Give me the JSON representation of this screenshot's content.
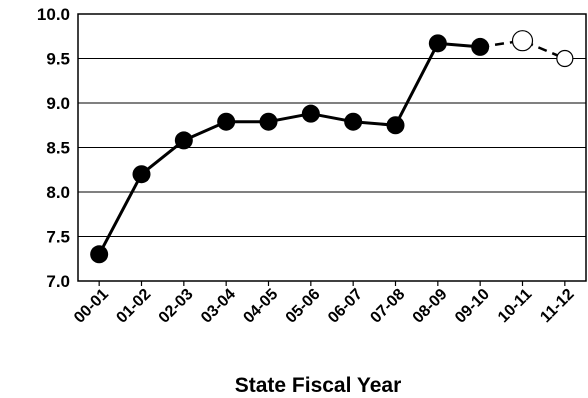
{
  "chart_data": {
    "type": "line",
    "title": "",
    "xlabel": "State Fiscal Year",
    "ylabel": "",
    "ylim": [
      7.0,
      10.0
    ],
    "yticks": [
      "7.0",
      "7.5",
      "8.0",
      "8.5",
      "9.0",
      "9.5",
      "10.0"
    ],
    "grid": true,
    "categories": [
      "00-01",
      "01-02",
      "02-03",
      "03-04",
      "04-05",
      "05-06",
      "06-07",
      "07-08",
      "08-09",
      "09-10",
      "10-11",
      "11-12"
    ],
    "series": [
      {
        "style": "solid-filled-markers",
        "values": [
          7.3,
          8.2,
          8.58,
          8.79,
          8.79,
          8.88,
          8.79,
          8.75,
          9.67,
          9.63,
          null,
          null
        ]
      },
      {
        "style": "dashed-open-markers",
        "values": [
          null,
          null,
          null,
          null,
          null,
          null,
          null,
          null,
          null,
          9.63,
          9.7,
          9.5
        ]
      }
    ],
    "colors": {
      "line": "#000000",
      "grid": "#000000",
      "open_marker_fill": "#ffffff"
    }
  }
}
